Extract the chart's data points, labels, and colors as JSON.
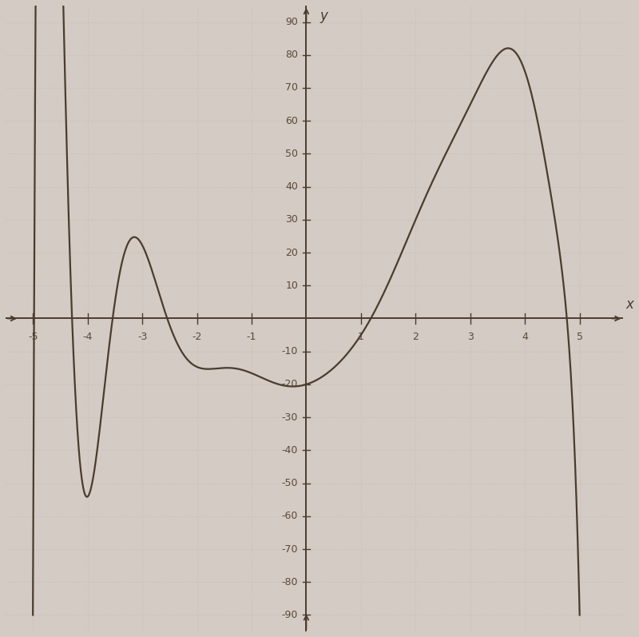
{
  "xlim": [
    -5.5,
    5.8
  ],
  "ylim": [
    -95,
    95
  ],
  "xticks": [
    -5,
    -4,
    -3,
    -2,
    -1,
    1,
    2,
    3,
    4,
    5
  ],
  "yticks_pos": [
    10,
    20,
    30,
    40,
    50,
    60,
    70,
    80,
    90
  ],
  "yticks_neg": [
    -10,
    -20,
    -30,
    -40,
    -50,
    -60,
    -70,
    -80,
    -90
  ],
  "xlabel": "x",
  "ylabel": "y",
  "grid_color": "#c8c0b8",
  "curve_color": "#4a3c2e",
  "background_color": "#d4cbc4",
  "axis_color": "#4a3c2e",
  "tick_label_color": "#5a4a3a",
  "domain": [
    -5.0,
    5.0
  ],
  "key_x": [
    -5.0,
    -4.2,
    -3.5,
    -2.5,
    -1.5,
    -0.5,
    0.0,
    0.5,
    1.0,
    2.0,
    3.0,
    3.5,
    4.0,
    4.5,
    5.0
  ],
  "key_y": [
    -90,
    -30,
    5,
    -2,
    -15,
    -20,
    -20,
    -15,
    -5,
    30,
    65,
    80,
    75,
    35,
    -90
  ]
}
